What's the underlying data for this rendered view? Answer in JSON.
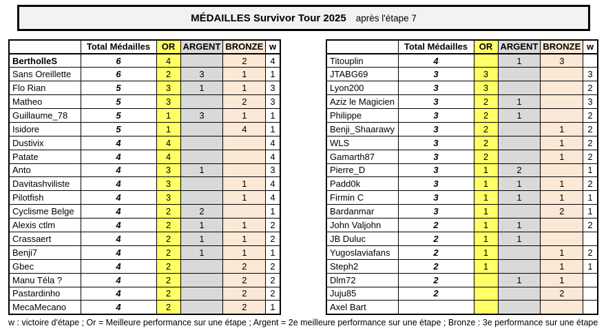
{
  "title": {
    "main": "MÉDAILLES Survivor Tour 2025",
    "suffix": "après l'étape 7"
  },
  "columns": {
    "name": "",
    "total": "Total Médailles",
    "or": "OR",
    "argent": "ARGENT",
    "bronze": "BRONZE",
    "w": "w"
  },
  "colors": {
    "or": "#ffff66",
    "argent": "#d9d9d9",
    "bronze": "#fce9d5",
    "title_bg": "#f2f2f2"
  },
  "left_table": {
    "rows": [
      {
        "name": "BertholleS",
        "bold": true,
        "total": "6",
        "or": "4",
        "argent": "",
        "bronze": "2",
        "w": "4"
      },
      {
        "name": "Sans Oreillette",
        "total": "6",
        "or": "2",
        "argent": "3",
        "bronze": "1",
        "w": "1"
      },
      {
        "name": "Flo Rian",
        "total": "5",
        "or": "3",
        "argent": "1",
        "bronze": "1",
        "w": "3"
      },
      {
        "name": "Matheo",
        "total": "5",
        "or": "3",
        "argent": "",
        "bronze": "2",
        "w": "3"
      },
      {
        "name": "Guillaume_78",
        "total": "5",
        "or": "1",
        "argent": "3",
        "bronze": "1",
        "w": "1"
      },
      {
        "name": "Isidore",
        "total": "5",
        "or": "1",
        "argent": "",
        "bronze": "4",
        "w": "1"
      },
      {
        "name": "Dustivix",
        "total": "4",
        "or": "4",
        "argent": "",
        "bronze": "",
        "w": "4"
      },
      {
        "name": "Patate",
        "total": "4",
        "or": "4",
        "argent": "",
        "bronze": "",
        "w": "4"
      },
      {
        "name": "Anto",
        "total": "4",
        "or": "3",
        "argent": "1",
        "bronze": "",
        "w": "3"
      },
      {
        "name": "Davitashviliste",
        "total": "4",
        "or": "3",
        "argent": "",
        "bronze": "1",
        "w": "4"
      },
      {
        "name": "Pilotfish",
        "total": "4",
        "or": "3",
        "argent": "",
        "bronze": "1",
        "w": "4"
      },
      {
        "name": "Cyclisme Belge",
        "total": "4",
        "or": "2",
        "argent": "2",
        "bronze": "",
        "w": "1"
      },
      {
        "name": "Alexis ctlm",
        "total": "4",
        "or": "2",
        "argent": "1",
        "bronze": "1",
        "w": "2"
      },
      {
        "name": "Crassaert",
        "total": "4",
        "or": "2",
        "argent": "1",
        "bronze": "1",
        "w": "2"
      },
      {
        "name": "Benji7",
        "total": "4",
        "or": "2",
        "argent": "1",
        "bronze": "1",
        "w": "1"
      },
      {
        "name": "Gbec",
        "total": "4",
        "or": "2",
        "argent": "",
        "bronze": "2",
        "w": "2"
      },
      {
        "name": "Manu Téla ?",
        "total": "4",
        "or": "2",
        "argent": "",
        "bronze": "2",
        "w": "2"
      },
      {
        "name": "Pastardinho",
        "total": "4",
        "or": "2",
        "argent": "",
        "bronze": "2",
        "w": "2"
      },
      {
        "name": "MecaMecano",
        "total": "4",
        "or": "2",
        "argent": "",
        "bronze": "2",
        "w": "1"
      }
    ]
  },
  "right_table": {
    "rows": [
      {
        "name": "Titouplin",
        "total": "4",
        "or": "",
        "argent": "1",
        "bronze": "3",
        "w": ""
      },
      {
        "name": "JTABG69",
        "total": "3",
        "or": "3",
        "argent": "",
        "bronze": "",
        "w": "3"
      },
      {
        "name": "Lyon200",
        "total": "3",
        "or": "3",
        "argent": "",
        "bronze": "",
        "w": "2"
      },
      {
        "name": "Aziz le Magicien",
        "total": "3",
        "or": "2",
        "argent": "1",
        "bronze": "",
        "w": "3"
      },
      {
        "name": "Philippe",
        "total": "3",
        "or": "2",
        "argent": "1",
        "bronze": "",
        "w": "2"
      },
      {
        "name": "Benji_Shaarawy",
        "total": "3",
        "or": "2",
        "argent": "",
        "bronze": "1",
        "w": "2"
      },
      {
        "name": "WLS",
        "total": "3",
        "or": "2",
        "argent": "",
        "bronze": "1",
        "w": "2"
      },
      {
        "name": "Gamarth87",
        "total": "3",
        "or": "2",
        "argent": "",
        "bronze": "1",
        "w": "2"
      },
      {
        "name": "Pierre_D",
        "total": "3",
        "or": "1",
        "argent": "2",
        "bronze": "",
        "w": "1"
      },
      {
        "name": "Padd0k",
        "total": "3",
        "or": "1",
        "argent": "1",
        "bronze": "1",
        "w": "2"
      },
      {
        "name": "Firmin C",
        "total": "3",
        "or": "1",
        "argent": "1",
        "bronze": "1",
        "w": "1"
      },
      {
        "name": "Bardanmar",
        "total": "3",
        "or": "1",
        "argent": "",
        "bronze": "2",
        "w": "1"
      },
      {
        "name": "John Valjohn",
        "total": "2",
        "or": "1",
        "argent": "1",
        "bronze": "",
        "w": "2"
      },
      {
        "name": "JB Duluc",
        "total": "2",
        "or": "1",
        "argent": "1",
        "bronze": "",
        "w": ""
      },
      {
        "name": "Yugoslaviafans",
        "total": "2",
        "or": "1",
        "argent": "",
        "bronze": "1",
        "w": "2"
      },
      {
        "name": "Steph2",
        "total": "2",
        "or": "1",
        "argent": "",
        "bronze": "1",
        "w": "1"
      },
      {
        "name": "Dlm72",
        "total": "2",
        "or": "",
        "argent": "1",
        "bronze": "1",
        "w": ""
      },
      {
        "name": "Juju85",
        "total": "2",
        "or": "",
        "argent": "",
        "bronze": "2",
        "w": ""
      },
      {
        "name": "Axel Bart",
        "total": "",
        "or": "",
        "argent": "",
        "bronze": "",
        "w": ""
      }
    ]
  },
  "footer": "w : victoire d'étape ; Or = Meilleure performance sur une étape ; Argent = 2e meilleure performance sur une étape ;  Bronze : 3e performance sur une étape"
}
